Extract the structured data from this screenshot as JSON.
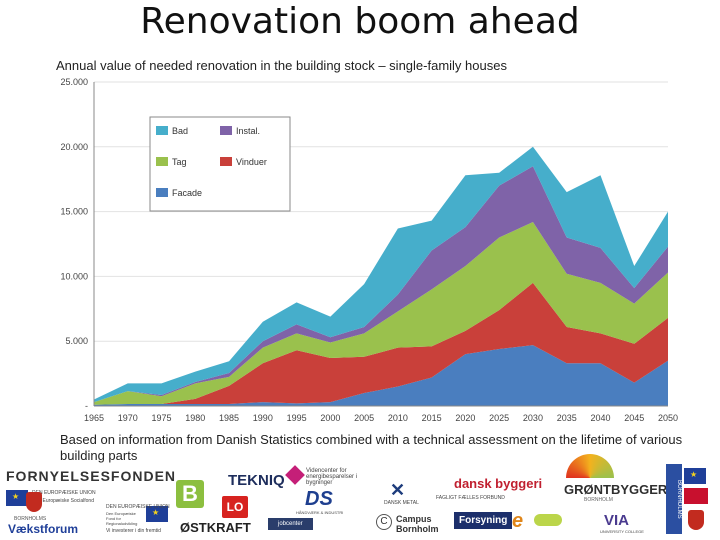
{
  "title": "Renovation boom ahead",
  "subtitle": "Annual value of needed renovation in the building stock – single-family houses",
  "note": "Based on information from Danish Statistics combined with a technical assessment on the lifetime of various building parts",
  "colors": {
    "Facade": "#4a7ebf",
    "Vinduer": "#c9403a",
    "Tag": "#9ac14d",
    "Instal.": "#7f63a8",
    "Bad": "#46aecb"
  },
  "chart_data": {
    "type": "area",
    "stacked": true,
    "title": "Annual value of needed renovation in the building stock – single-family houses",
    "x": [
      "1965",
      "1970",
      "1975",
      "1980",
      "1985",
      "1990",
      "1995",
      "2000",
      "2005",
      "2010",
      "2015",
      "2020",
      "2025",
      "2030",
      "2035",
      "2040",
      "2045",
      "2050"
    ],
    "y_ticks": [
      "-",
      "5.000",
      "10.000",
      "15.000",
      "20.000",
      "25.000"
    ],
    "ylim": [
      0,
      25000
    ],
    "legend_position": "top-left",
    "series": [
      {
        "name": "Facade",
        "values": [
          100,
          150,
          150,
          150,
          150,
          300,
          200,
          300,
          1000,
          1500,
          2200,
          4000,
          4400,
          4700,
          3300,
          3300,
          1800,
          3500
        ]
      },
      {
        "name": "Vinduer",
        "values": [
          0,
          0,
          0,
          400,
          1400,
          3000,
          4100,
          3400,
          2800,
          3000,
          2400,
          1800,
          3000,
          4800,
          2800,
          2300,
          3000,
          3300
        ]
      },
      {
        "name": "Tag",
        "values": [
          200,
          1000,
          600,
          1200,
          700,
          1200,
          1300,
          1200,
          1800,
          2800,
          4400,
          5000,
          5600,
          4700,
          4100,
          3900,
          3100,
          3500
        ]
      },
      {
        "name": "Instal.",
        "values": [
          0,
          0,
          100,
          100,
          300,
          500,
          700,
          400,
          500,
          1300,
          3000,
          3000,
          4000,
          4300,
          2800,
          2700,
          1200,
          2000
        ]
      },
      {
        "name": "Bad",
        "values": [
          200,
          600,
          900,
          800,
          900,
          1500,
          1700,
          1600,
          3300,
          5100,
          2300,
          4000,
          1000,
          1500,
          3500,
          5600,
          1700,
          2700
        ]
      }
    ]
  },
  "legend_labels": {
    "bad": "Bad",
    "instal": "Instal.",
    "tag": "Tag",
    "vinduer": "Vinduer",
    "facade": "Facade"
  },
  "logos": {
    "fornyelsesfonden": "FORNYELSESFONDEN",
    "eu_text_1": "DEN EUROPÆISKE UNION",
    "eu_text_1b": "Den Europæiske Socialfond",
    "eu_text_2": "DEN EUROPÆISKE UNION",
    "eu_text_2b": "Den Europæiske Fond for Regionaludvikling",
    "eu_tagline": "Vi investerer i din fremtid",
    "vaekstforum_bornholms": "BORNHOLMS",
    "vaekstforum": "Vækstforum",
    "b_logo": "B",
    "tekniq": "TEKNIQ",
    "videncenter": "Videncenter for energibesparelser i bygninger",
    "lo": "LO",
    "ds": "DS",
    "ds_sub": "HÅNDVÆRK & INDUSTRI",
    "oestkraft": "ØSTKRAFT",
    "jobcenter": "jobcenter",
    "dansk_metal": "DANSK METAL",
    "dansk_byggeri": "dansk byggeri",
    "faglige": "FAGLIGT FÆLLES FORBUND",
    "campus": "Campus Bornholm",
    "forsyning": "Forsyning",
    "groentbygger": "GRØNTBYGGER",
    "groentbygger_sub": "BORNHOLM",
    "via": "VIA",
    "via_sub": "UNIVERSITY COLLEGE",
    "bornholms_regionskommune": "BORNHOLMS"
  }
}
